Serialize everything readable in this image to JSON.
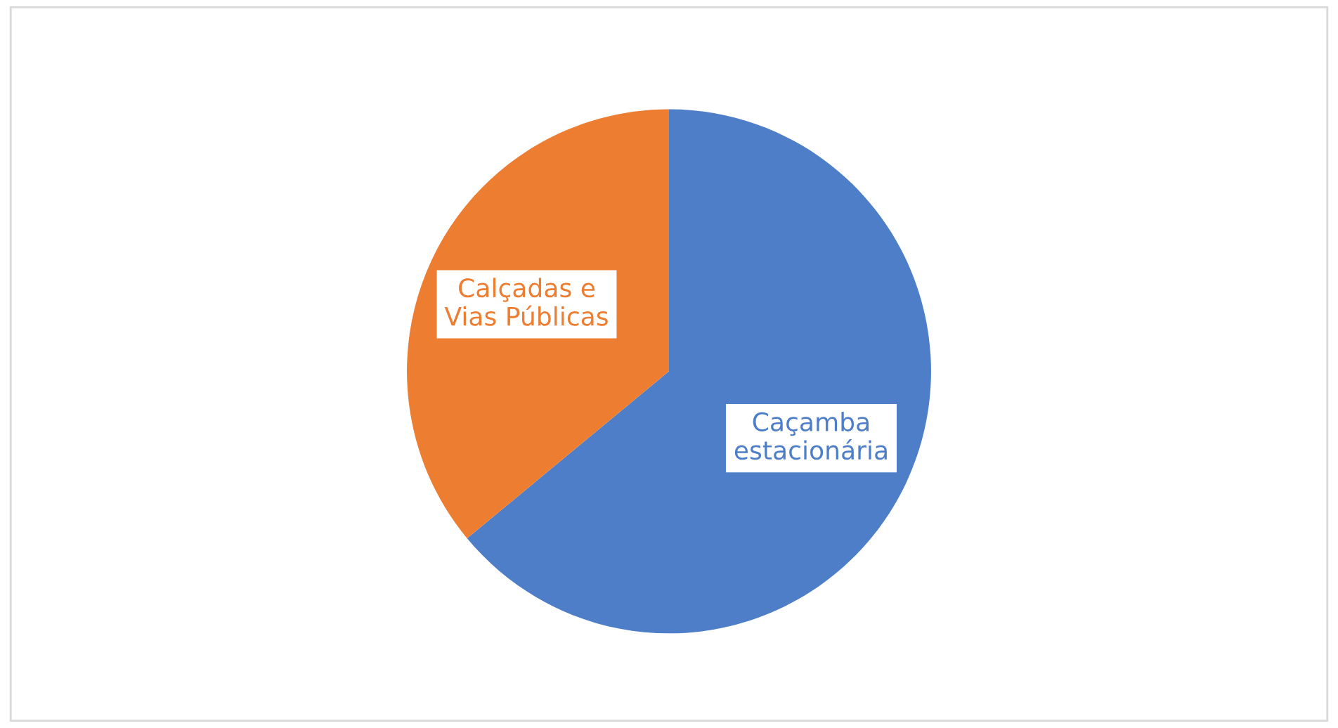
{
  "chart_data": {
    "type": "pie",
    "categories": [
      "Caçamba estacionária",
      "Calçadas e Vias Públicas"
    ],
    "values": [
      64,
      36
    ],
    "colors": [
      "#4f7ec9",
      "#ed7d31"
    ]
  }
}
